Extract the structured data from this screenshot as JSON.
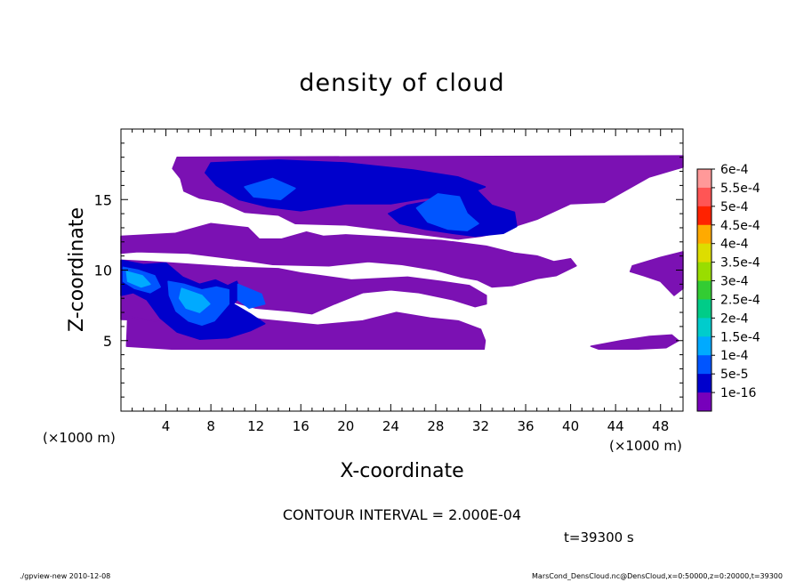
{
  "chart_data": {
    "type": "heatmap",
    "title": "density of cloud",
    "xlabel": "X-coordinate",
    "ylabel": "Z-coordinate",
    "x_unit_label": "(×1000 m)",
    "y_unit_label": "(×1000 m)",
    "xlim": [
      0,
      50
    ],
    "ylim": [
      0,
      20
    ],
    "x_ticks": [
      4,
      8,
      12,
      16,
      20,
      24,
      28,
      32,
      36,
      40,
      44,
      48
    ],
    "y_ticks": [
      5,
      10,
      15
    ],
    "colorbar": {
      "labels": [
        "6e-4",
        "5.5e-4",
        "5e-4",
        "4.5e-4",
        "4e-4",
        "3.5e-4",
        "3e-4",
        "2.5e-4",
        "2e-4",
        "1.5e-4",
        "1e-4",
        "5e-5",
        "1e-16"
      ],
      "colors": [
        "#ff9999",
        "#ff5555",
        "#ff2200",
        "#ffaa00",
        "#dddd00",
        "#99dd00",
        "#33cc33",
        "#00cc88",
        "#00cccc",
        "#00aaff",
        "#0055ff",
        "#0000cc",
        "#7700bb"
      ]
    },
    "background_color": "#7b11b3",
    "regions": [
      {
        "level": "1e-16",
        "points": [
          [
            5,
            18
          ],
          [
            50,
            18.1
          ],
          [
            50,
            17.3
          ],
          [
            47,
            16.6
          ],
          [
            43,
            14.8
          ],
          [
            40,
            14.7
          ],
          [
            37,
            13.6
          ],
          [
            35,
            13.1
          ],
          [
            34,
            12.7
          ],
          [
            32,
            12.4
          ],
          [
            30,
            12.2
          ],
          [
            27,
            12.5
          ],
          [
            23,
            12.9
          ],
          [
            20,
            13.2
          ],
          [
            15.5,
            13.3
          ],
          [
            14,
            13.9
          ],
          [
            11,
            14.1
          ],
          [
            9,
            14.8
          ],
          [
            7,
            15.1
          ],
          [
            5.6,
            15.6
          ],
          [
            5.3,
            16.5
          ],
          [
            4.6,
            17.2
          ]
        ]
      },
      {
        "level": "1e-16",
        "points": [
          [
            0,
            12.4
          ],
          [
            4.8,
            12.6
          ],
          [
            8,
            13.3
          ],
          [
            11.3,
            13.0
          ],
          [
            12.3,
            12.2
          ],
          [
            14.3,
            12.2
          ],
          [
            16.5,
            12.7
          ],
          [
            18,
            12.4
          ],
          [
            20,
            12.5
          ],
          [
            24.5,
            12.3
          ],
          [
            28.5,
            12.1
          ],
          [
            32.5,
            11.7
          ],
          [
            35,
            11.2
          ],
          [
            37,
            11
          ],
          [
            38.5,
            10.6
          ],
          [
            40,
            10.8
          ],
          [
            40.5,
            10.3
          ],
          [
            38.7,
            9.6
          ],
          [
            37,
            9.4
          ],
          [
            34.8,
            8.9
          ],
          [
            33,
            8.8
          ],
          [
            31.7,
            9.3
          ],
          [
            30.3,
            9.5
          ],
          [
            28,
            10.0
          ],
          [
            25,
            10.4
          ],
          [
            22,
            10.6
          ],
          [
            18.5,
            10.3
          ],
          [
            13.5,
            10.4
          ],
          [
            10,
            10.8
          ],
          [
            6,
            11.2
          ],
          [
            1.5,
            11.3
          ],
          [
            0,
            11.2
          ]
        ]
      },
      {
        "level": "1e-16",
        "points": [
          [
            0,
            10.7
          ],
          [
            2.6,
            10.6
          ],
          [
            10,
            10.2
          ],
          [
            14,
            10.1
          ],
          [
            16,
            9.8
          ],
          [
            20.5,
            9.3
          ],
          [
            25.5,
            9.5
          ],
          [
            28.5,
            9.2
          ],
          [
            31,
            8.9
          ],
          [
            32.5,
            8.2
          ],
          [
            32.5,
            7.6
          ],
          [
            31.5,
            7.4
          ],
          [
            29.5,
            7.9
          ],
          [
            26.5,
            8.4
          ],
          [
            24,
            8.6
          ],
          [
            21.5,
            8.4
          ],
          [
            19,
            7.6
          ],
          [
            17,
            6.9
          ],
          [
            15,
            7.1
          ],
          [
            12,
            7.3
          ],
          [
            9.7,
            7.8
          ],
          [
            8,
            7.1
          ],
          [
            5,
            6.4
          ],
          [
            0,
            6.5
          ]
        ]
      },
      {
        "level": "1e-16",
        "points": [
          [
            0.6,
            6.7
          ],
          [
            3,
            6.4
          ],
          [
            6,
            6.7
          ],
          [
            10,
            6.9
          ],
          [
            12.5,
            6.5
          ],
          [
            17.5,
            6.1
          ],
          [
            21.5,
            6.4
          ],
          [
            24.5,
            7.0
          ],
          [
            27.5,
            6.6
          ],
          [
            30,
            6.4
          ],
          [
            32,
            5.8
          ],
          [
            32.4,
            5.0
          ],
          [
            32.3,
            4.4
          ],
          [
            19,
            4.4
          ],
          [
            12,
            4.4
          ],
          [
            4.5,
            4.4
          ],
          [
            0.5,
            4.6
          ]
        ]
      },
      {
        "level": "1e-16",
        "points": [
          [
            41.8,
            4.6
          ],
          [
            44.5,
            5.0
          ],
          [
            47,
            5.3
          ],
          [
            49,
            5.4
          ],
          [
            49.6,
            5.0
          ],
          [
            48.5,
            4.5
          ],
          [
            46,
            4.4
          ],
          [
            42.5,
            4.4
          ]
        ]
      },
      {
        "level": "1e-16",
        "points": [
          [
            45.5,
            10.3
          ],
          [
            48,
            10.9
          ],
          [
            50,
            11.3
          ],
          [
            50,
            8.7
          ],
          [
            49.2,
            8.2
          ],
          [
            48,
            9.2
          ],
          [
            46.5,
            9.6
          ],
          [
            45.3,
            9.9
          ]
        ]
      },
      {
        "level": "5e-5",
        "points": [
          [
            8,
            17.6
          ],
          [
            14,
            17.8
          ],
          [
            20,
            17.6
          ],
          [
            26,
            17.1
          ],
          [
            30,
            16.6
          ],
          [
            32.4,
            15.9
          ],
          [
            30.5,
            15.3
          ],
          [
            27,
            15.1
          ],
          [
            24,
            14.7
          ],
          [
            20,
            14.7
          ],
          [
            16,
            14.2
          ],
          [
            13,
            14.5
          ],
          [
            10.5,
            15.0
          ],
          [
            8.5,
            16.0
          ],
          [
            7.5,
            16.9
          ]
        ]
      },
      {
        "level": "5e-5",
        "points": [
          [
            27.5,
            14.9
          ],
          [
            29,
            15.9
          ],
          [
            31.5,
            15.8
          ],
          [
            33,
            14.6
          ],
          [
            35,
            14.1
          ],
          [
            35.2,
            13.1
          ],
          [
            34,
            12.6
          ],
          [
            31.5,
            12.4
          ],
          [
            29.5,
            12.6
          ],
          [
            27,
            12.9
          ],
          [
            24.8,
            13.3
          ],
          [
            23.8,
            14.0
          ],
          [
            25.5,
            14.6
          ]
        ]
      },
      {
        "level": "5e-5",
        "points": [
          [
            0,
            10.7
          ],
          [
            2,
            10.4
          ],
          [
            4,
            10.5
          ],
          [
            5.5,
            9.5
          ],
          [
            7,
            9.0
          ],
          [
            8.4,
            9.3
          ],
          [
            9.5,
            8.9
          ],
          [
            10.3,
            9.2
          ],
          [
            10.8,
            8.3
          ],
          [
            10,
            7.6
          ],
          [
            11.5,
            6.9
          ],
          [
            12.8,
            6.2
          ],
          [
            11.5,
            5.7
          ],
          [
            9.5,
            5.2
          ],
          [
            7,
            5.1
          ],
          [
            5,
            5.6
          ],
          [
            3.5,
            6.6
          ],
          [
            2.3,
            7.9
          ],
          [
            1.1,
            8.4
          ],
          [
            0,
            8.2
          ]
        ]
      },
      {
        "level": "1e-4",
        "points": [
          [
            0.2,
            10.2
          ],
          [
            1.5,
            10.0
          ],
          [
            3,
            9.6
          ],
          [
            3.5,
            8.8
          ],
          [
            2.6,
            8.4
          ],
          [
            1.2,
            8.7
          ],
          [
            0.2,
            9.2
          ]
        ]
      },
      {
        "level": "1e-4",
        "points": [
          [
            4.2,
            9.2
          ],
          [
            5.6,
            9.0
          ],
          [
            7.2,
            8.6
          ],
          [
            8.5,
            8.8
          ],
          [
            9.6,
            8.6
          ],
          [
            9.6,
            7.6
          ],
          [
            8.3,
            6.4
          ],
          [
            7.2,
            6.1
          ],
          [
            6.0,
            6.4
          ],
          [
            4.9,
            7.1
          ],
          [
            4.3,
            8.2
          ]
        ]
      },
      {
        "level": "1e-4",
        "points": [
          [
            10.4,
            9.0
          ],
          [
            12.5,
            8.3
          ],
          [
            12.8,
            7.6
          ],
          [
            11.4,
            7.3
          ],
          [
            10.4,
            7.9
          ]
        ]
      },
      {
        "level": "1e-4",
        "points": [
          [
            26.3,
            14.4
          ],
          [
            28.2,
            15.4
          ],
          [
            30.1,
            15.2
          ],
          [
            30.8,
            14.0
          ],
          [
            31.8,
            13.3
          ],
          [
            30.8,
            12.8
          ],
          [
            29.1,
            12.9
          ],
          [
            27.3,
            13.4
          ]
        ]
      },
      {
        "level": "1e-4",
        "points": [
          [
            11,
            15.9
          ],
          [
            13.5,
            16.5
          ],
          [
            15.5,
            15.8
          ],
          [
            14.2,
            15.0
          ],
          [
            11.8,
            15.2
          ]
        ]
      },
      {
        "level": "1.5e-4",
        "points": [
          [
            5.4,
            8.7
          ],
          [
            7.2,
            8.2
          ],
          [
            7.9,
            7.6
          ],
          [
            7.0,
            7.0
          ],
          [
            5.8,
            7.3
          ],
          [
            5.2,
            8.0
          ]
        ]
      },
      {
        "level": "1.5e-4",
        "points": [
          [
            0.5,
            9.9
          ],
          [
            1.9,
            9.6
          ],
          [
            2.6,
            9.0
          ],
          [
            1.8,
            8.8
          ],
          [
            0.6,
            9.2
          ]
        ]
      }
    ]
  },
  "contour_interval": "CONTOUR INTERVAL = 2.000E-04",
  "time_label": "t=39300 s",
  "footer_left": "./gpview-new   2010-12-08",
  "footer_right": "MarsCond_DensCloud.nc@DensCloud,x=0:50000,z=0:20000,t=39300"
}
